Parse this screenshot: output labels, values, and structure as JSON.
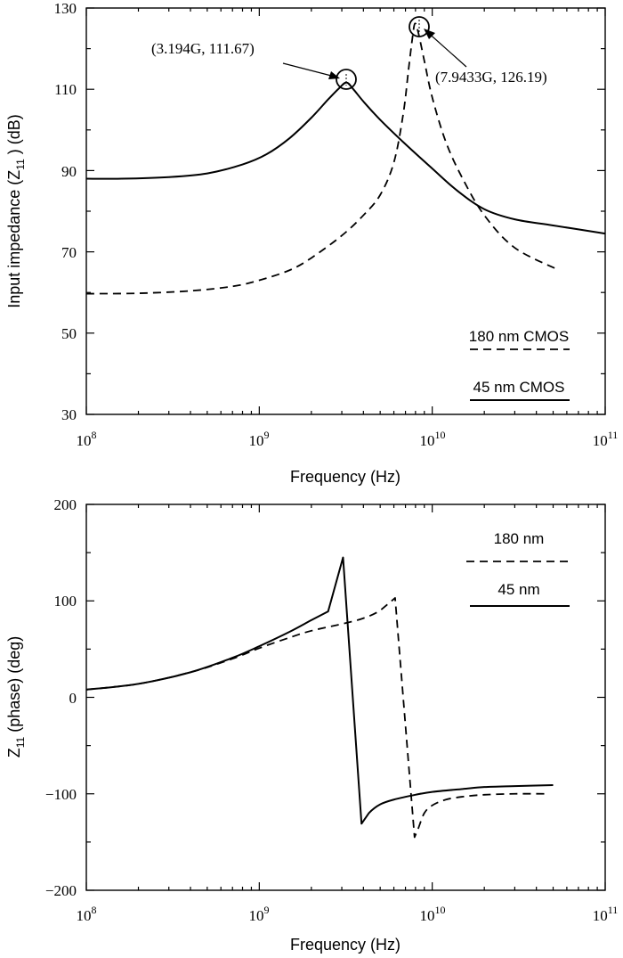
{
  "chart_data": [
    {
      "type": "line",
      "xscale": "log",
      "xlim": [
        100000000,
        100000000000
      ],
      "ylim": [
        30,
        130
      ],
      "xticks": [
        {
          "value": 100000000,
          "base": "10",
          "exp": "8"
        },
        {
          "value": 1000000000,
          "base": "10",
          "exp": "9"
        },
        {
          "value": 10000000000,
          "base": "10",
          "exp": "10"
        },
        {
          "value": 100000000000,
          "base": "10",
          "exp": "11"
        }
      ],
      "yticks": [
        "30",
        "50",
        "70",
        "90",
        "110",
        "130"
      ],
      "xlabel": "Frequency (Hz)",
      "ylabel": "Input impedance (Z11 ) (dB)",
      "ylabel_parts": {
        "pre": "Input impedance (Z",
        "sub": "11",
        "post": " ) (dB)"
      },
      "legend_placement": "bottom-right",
      "series": [
        {
          "name": "45 nm CMOS",
          "style": "solid",
          "x": [
            100000000,
            160000000,
            300000000,
            500000000,
            800000000,
            1100000000,
            1500000000,
            2000000000,
            2500000000,
            2900000000,
            3194000000,
            3500000000,
            4000000000,
            5000000000,
            7000000000,
            10000000000,
            14000000000,
            20000000000,
            30000000000,
            50000000000,
            100000000000
          ],
          "y": [
            88,
            88,
            88.4,
            89.3,
            91.5,
            94,
            98,
            103,
            107.5,
            110.3,
            111.67,
            110,
            107,
            102.5,
            96.5,
            90.5,
            85,
            80.5,
            78,
            76.5,
            74.5
          ]
        },
        {
          "name": "180 nm CMOS",
          "style": "dashed",
          "x": [
            100000000,
            200000000,
            400000000,
            700000000,
            1000000000,
            1500000000,
            2000000000,
            3000000000,
            4000000000,
            5000000000,
            6000000000,
            6800000000,
            7300000000,
            7700000000,
            7943300000,
            8300000000,
            9000000000,
            10000000000,
            12000000000,
            15000000000,
            20000000000,
            30000000000,
            54000000000
          ],
          "y": [
            59.7,
            59.8,
            60.4,
            61.5,
            63,
            65.5,
            68.5,
            74,
            79,
            84,
            92,
            104,
            115,
            123,
            126.19,
            124,
            117,
            108,
            97,
            88,
            79,
            71,
            65.5
          ]
        }
      ],
      "annotations": [
        {
          "text": "(3.194G, 111.67)",
          "x": 3194000000,
          "y": 111.67
        },
        {
          "text": "(7.9433G, 126.19)",
          "x": 7943300000,
          "y": 126.19
        }
      ]
    },
    {
      "type": "line",
      "xscale": "log",
      "xlim": [
        100000000,
        100000000000
      ],
      "ylim": [
        -200,
        200
      ],
      "xticks": [
        {
          "value": 100000000,
          "base": "10",
          "exp": "8"
        },
        {
          "value": 1000000000,
          "base": "10",
          "exp": "9"
        },
        {
          "value": 10000000000,
          "base": "10",
          "exp": "10"
        },
        {
          "value": 100000000000,
          "base": "10",
          "exp": "11"
        }
      ],
      "yticks": [
        "−200",
        "−100",
        "0",
        "100",
        "200"
      ],
      "xlabel": "Frequency (Hz)",
      "ylabel": "Z11 (phase) (deg)",
      "ylabel_parts": {
        "pre": "Z",
        "sub": "11",
        "post": " (phase) (deg)"
      },
      "legend_placement": "top-right",
      "series": [
        {
          "name": "45 nm",
          "style": "solid",
          "x": [
            100000000,
            200000000,
            400000000,
            700000000,
            1000000000,
            1500000000,
            2000000000,
            2500000000,
            3050000000,
            3900000000,
            4300000000,
            5000000000,
            6000000000,
            8000000000,
            10000000000,
            15000000000,
            20000000000,
            30000000000,
            50000000000
          ],
          "y": [
            8,
            14,
            26,
            41,
            53,
            68,
            80,
            89,
            145,
            -131,
            -120,
            -111,
            -106,
            -101,
            -98,
            -95,
            -93,
            -92,
            -91
          ]
        },
        {
          "name": "180 nm",
          "style": "dashed",
          "x": [
            100000000,
            200000000,
            400000000,
            700000000,
            1000000000,
            1500000000,
            2000000000,
            3000000000,
            4000000000,
            5000000000,
            6100000000,
            7900000000,
            8300000000,
            9000000000,
            10000000000,
            12000000000,
            15000000000,
            20000000000,
            30000000000,
            45000000000
          ],
          "y": [
            8,
            14,
            26,
            40,
            51,
            62,
            69,
            76,
            82,
            90,
            103,
            -145,
            -136,
            -120,
            -112,
            -106,
            -103,
            -101,
            -100,
            -100
          ]
        }
      ]
    }
  ]
}
